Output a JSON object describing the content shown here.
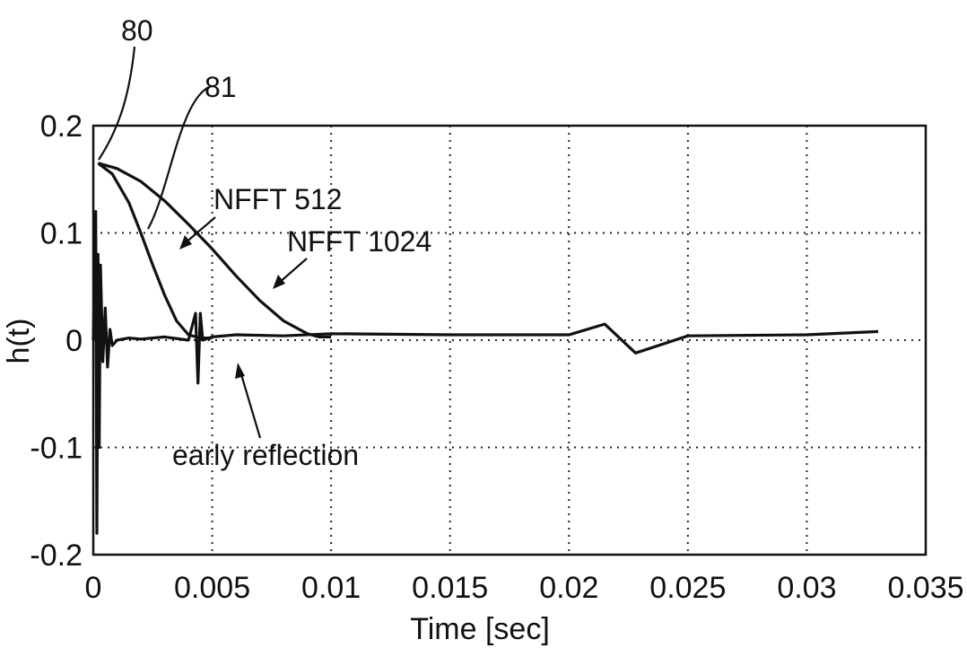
{
  "chart_data": {
    "type": "line",
    "xlabel": "Time [sec]",
    "ylabel": "h(t)",
    "xlim": [
      0,
      0.035
    ],
    "ylim": [
      -0.2,
      0.2
    ],
    "x_ticks": [
      "0",
      "0.005",
      "0.01",
      "0.015",
      "0.02",
      "0.025",
      "0.03",
      "0.035"
    ],
    "y_ticks": [
      "0.2",
      "0.1",
      "0",
      "-0.1",
      "-0.2"
    ],
    "grid": true,
    "series": [
      {
        "name": "NFFT 512",
        "x": [
          0.0002,
          0.0008,
          0.0015,
          0.002,
          0.0025,
          0.003,
          0.0035,
          0.004,
          0.0045,
          0.005
        ],
        "values": [
          0.165,
          0.155,
          0.128,
          0.1,
          0.07,
          0.042,
          0.018,
          0.005,
          0.002,
          0.002
        ]
      },
      {
        "name": "NFFT 1024",
        "x": [
          0.0002,
          0.001,
          0.002,
          0.003,
          0.004,
          0.005,
          0.006,
          0.007,
          0.008,
          0.009,
          0.0095,
          0.01
        ],
        "values": [
          0.165,
          0.16,
          0.148,
          0.13,
          0.108,
          0.085,
          0.06,
          0.037,
          0.018,
          0.006,
          0.003,
          0.003
        ]
      },
      {
        "name": "early reflection",
        "x": [
          0.0,
          0.0001,
          0.00015,
          0.0002,
          0.00025,
          0.0003,
          0.0004,
          0.0005,
          0.0006,
          0.0007,
          0.0008,
          0.001,
          0.0015,
          0.002,
          0.003,
          0.004,
          0.0043,
          0.0044,
          0.0045,
          0.0046,
          0.005,
          0.006,
          0.008,
          0.01,
          0.015,
          0.02,
          0.0215,
          0.0228,
          0.025,
          0.03,
          0.033
        ],
        "values": [
          0.0,
          0.12,
          -0.18,
          0.08,
          -0.1,
          0.07,
          -0.02,
          0.03,
          -0.025,
          0.01,
          -0.005,
          0.0,
          0.002,
          0.001,
          0.003,
          0.0,
          0.025,
          -0.04,
          0.025,
          0.0,
          0.003,
          0.005,
          0.004,
          0.006,
          0.005,
          0.005,
          0.015,
          -0.012,
          0.004,
          0.005,
          0.008
        ]
      }
    ],
    "annotations": [
      "80",
      "81",
      "NFFT 512",
      "NFFT 1024",
      "early reflection"
    ]
  }
}
